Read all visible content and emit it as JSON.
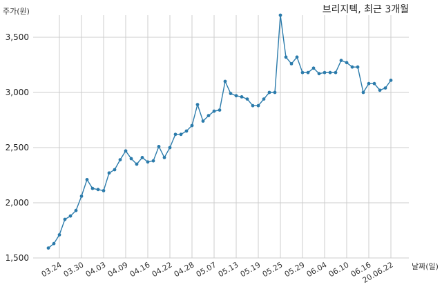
{
  "chart_data": {
    "type": "line",
    "title": "브리지텍, 최근 3개월",
    "xlabel": "날짜(일)",
    "ylabel": "주가(원)",
    "ylim": [
      1500,
      3700
    ],
    "yticks": [
      1500,
      2000,
      2500,
      3000,
      3500
    ],
    "ytick_labels": [
      "1,500",
      "2,000",
      "2,500",
      "3,000",
      "3,500"
    ],
    "xtick_labels": [
      "03.24",
      "03.30",
      "04.03",
      "04.09",
      "04.16",
      "04.22",
      "04.28",
      "05.07",
      "05.13",
      "05.19",
      "05.25",
      "05.29",
      "06.04",
      "06.10",
      "06.16",
      "20.06.22"
    ],
    "xtick_index": [
      2,
      6,
      10,
      14,
      18,
      22,
      26,
      30,
      34,
      38,
      42,
      46,
      50,
      54,
      58,
      62
    ],
    "grid": true,
    "line_color": "#2b7bab",
    "values": [
      1590,
      1630,
      1710,
      1850,
      1880,
      1930,
      2060,
      2210,
      2130,
      2120,
      2110,
      2270,
      2300,
      2390,
      2470,
      2400,
      2350,
      2410,
      2370,
      2380,
      2510,
      2410,
      2500,
      2620,
      2620,
      2650,
      2700,
      2890,
      2740,
      2790,
      2830,
      2840,
      3100,
      2990,
      2970,
      2960,
      2940,
      2880,
      2880,
      2940,
      3000,
      3000,
      3700,
      3320,
      3260,
      3320,
      3180,
      3180,
      3220,
      3170,
      3180,
      3180,
      3180,
      3290,
      3270,
      3230,
      3230,
      3000,
      3080,
      3080,
      3020,
      3040,
      3110
    ]
  }
}
